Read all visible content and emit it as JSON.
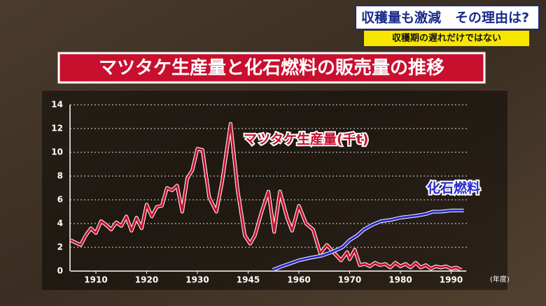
{
  "header": {
    "headline": "収穫量も激減",
    "question": "その理由は?",
    "subline": "収穫期の遅れだけではない"
  },
  "chart_data": {
    "type": "line",
    "title": "マツタケ生産量と化石燃料の販売量の推移",
    "x_unit": "(年度)",
    "xlim": [
      1905,
      1993
    ],
    "xticks": [
      1910,
      1920,
      1930,
      1945,
      1960,
      1970,
      1980,
      1990
    ],
    "highlight_xticks": [
      1945
    ],
    "highlight_color": "#f2d21b",
    "ylim": [
      0,
      14
    ],
    "yticks": [
      0,
      2,
      4,
      6,
      8,
      10,
      12,
      14
    ],
    "grid": true,
    "series": [
      {
        "name": "マツタケ生産量(千t)",
        "color": "#c8102e",
        "x": [
          1905,
          1906,
          1907,
          1908,
          1909,
          1910,
          1911,
          1912,
          1913,
          1914,
          1915,
          1916,
          1917,
          1918,
          1919,
          1920,
          1921,
          1922,
          1923,
          1924,
          1925,
          1926,
          1927,
          1928,
          1929,
          1930,
          1931.5,
          1933.5,
          1935.6,
          1937.3,
          1939.8,
          1941.9,
          1944,
          1945.6,
          1947,
          1949,
          1951,
          1952.7,
          1954.4,
          1956.5,
          1958,
          1960,
          1961.4,
          1962.8,
          1964.2,
          1965.5,
          1967,
          1968.3,
          1969.5,
          1970,
          1971,
          1972,
          1973,
          1974,
          1975,
          1976,
          1977,
          1978,
          1979,
          1980,
          1981,
          1982,
          1983,
          1984,
          1985,
          1986,
          1987,
          1988,
          1989,
          1990,
          1991,
          1992
        ],
        "values": [
          2.6,
          2.4,
          2.2,
          3.0,
          3.6,
          3.2,
          4.2,
          3.9,
          3.5,
          4.1,
          3.8,
          4.6,
          3.4,
          4.5,
          3.6,
          5.6,
          4.6,
          5.4,
          5.5,
          7.0,
          6.8,
          7.2,
          5.0,
          7.8,
          8.5,
          10.3,
          10.2,
          6.2,
          5.0,
          7.5,
          12.4,
          6.8,
          3.0,
          2.3,
          3.0,
          5.0,
          6.7,
          3.3,
          6.7,
          4.5,
          3.4,
          5.5,
          4.0,
          3.5,
          1.5,
          2.2,
          1.5,
          0.9,
          1.6,
          1.0,
          1.8,
          0.5,
          0.6,
          0.4,
          0.7,
          0.5,
          0.6,
          0.3,
          0.7,
          0.4,
          0.6,
          0.3,
          0.7,
          0.3,
          0.5,
          0.2,
          0.4,
          0.3,
          0.4,
          0.2,
          0.3,
          0.1
        ]
      },
      {
        "name": "化石燃料",
        "color": "#2a2ad0",
        "x": [
          1952.3,
          1955,
          1958,
          1960,
          1962,
          1964.5,
          1966.5,
          1968.6,
          1970,
          1971.5,
          1972.8,
          1974.5,
          1976.2,
          1978,
          1980,
          1982,
          1983.7,
          1985,
          1986.4,
          1988,
          1990,
          1992.5
        ],
        "values": [
          0.1,
          0.4,
          0.7,
          0.9,
          1.1,
          1.3,
          1.6,
          2.0,
          2.6,
          3.0,
          3.5,
          3.9,
          4.2,
          4.3,
          4.5,
          4.6,
          4.7,
          4.8,
          5.0,
          5.0,
          5.1,
          5.1
        ]
      }
    ]
  }
}
